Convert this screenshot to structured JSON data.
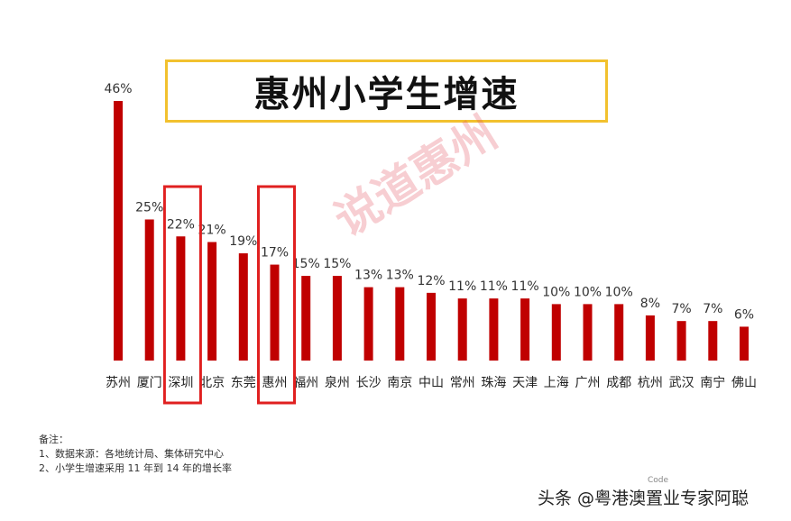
{
  "chart_data": {
    "type": "bar",
    "title": "惠州小学生增速",
    "categories": [
      "苏州",
      "厦门",
      "深圳",
      "北京",
      "东莞",
      "惠州",
      "福州",
      "泉州",
      "长沙",
      "南京",
      "中山",
      "常州",
      "珠海",
      "天津",
      "上海",
      "广州",
      "成都",
      "杭州",
      "武汉",
      "南宁",
      "佛山"
    ],
    "values": [
      46,
      25,
      22,
      21,
      19,
      17,
      15,
      15,
      13,
      13,
      12,
      11,
      11,
      11,
      10,
      10,
      10,
      8,
      7,
      7,
      6
    ],
    "value_labels": [
      "46%",
      "25%",
      "22%",
      "21%",
      "19%",
      "17%",
      "15%",
      "15%",
      "13%",
      "13%",
      "12%",
      "11%",
      "11%",
      "11%",
      "10%",
      "10%",
      "10%",
      "8%",
      "7%",
      "7%",
      "6%"
    ],
    "highlighted": [
      "深圳",
      "惠州"
    ],
    "ylim": [
      0,
      46
    ],
    "grid": false,
    "legend": "none",
    "colors": {
      "bar": "#c00000",
      "highlight_box": "#e02020",
      "title_border": "#f2c12e"
    }
  },
  "watermark": "说道惠州",
  "notes": {
    "heading": "备注：",
    "line1": "1、数据来源：各地统计局、集体研究中心",
    "line2": "2、小学生增速采用 11 年到 14 年的增长率"
  },
  "source_tag": "Code",
  "footer_credit": "头条 @粤港澳置业专家阿聪"
}
